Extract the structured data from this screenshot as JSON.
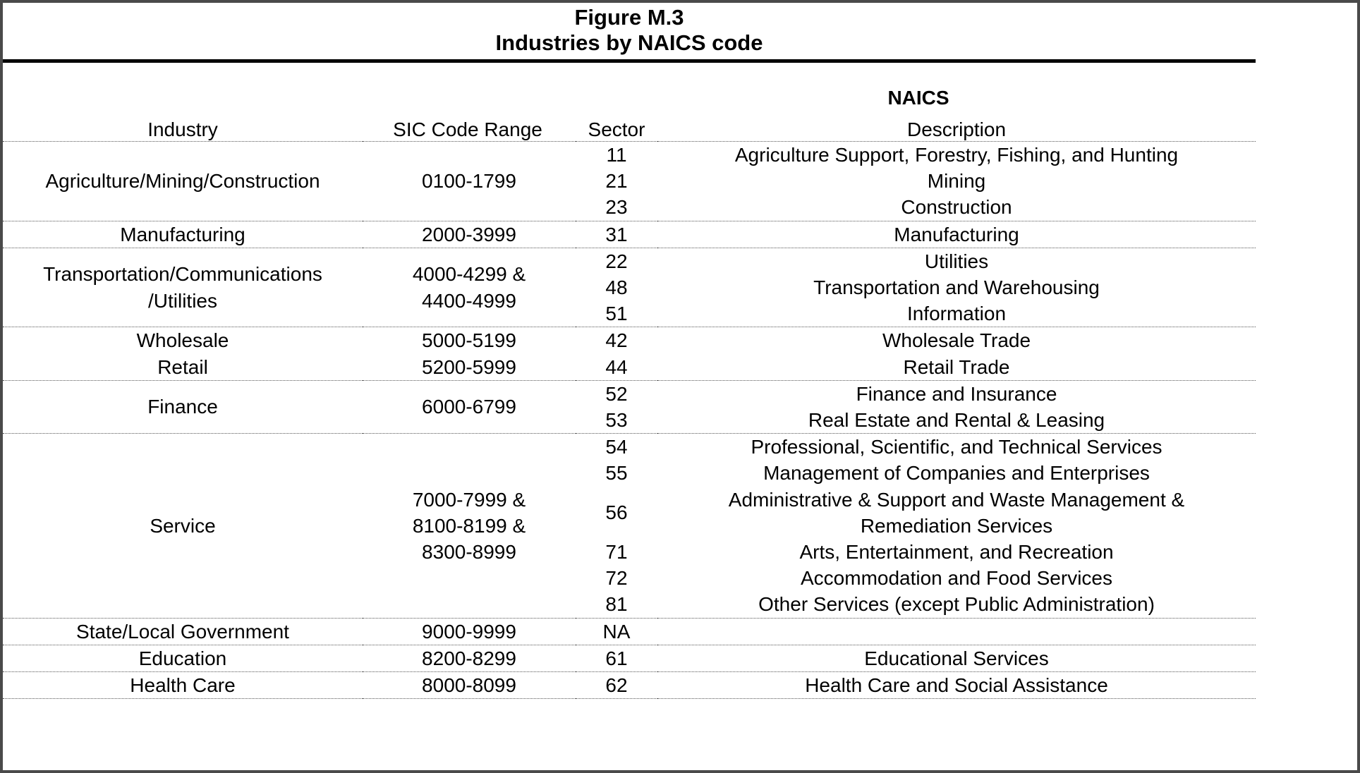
{
  "page": {
    "background": "#ffffff",
    "frame_color": "#4a4a4a",
    "thick_rule_color": "#000000",
    "dotted_line_color": "#555555",
    "text_color": "#000000"
  },
  "figure": {
    "title_line1": "Figure M.3",
    "title_line2": "Industries by NAICS code"
  },
  "table": {
    "naics_group_header": "NAICS",
    "headers": {
      "industry": "Industry",
      "sic": "SIC Code Range",
      "sector": "Sector",
      "description": "Description"
    },
    "groups": [
      {
        "industry": [
          "Agriculture/Mining/Construction"
        ],
        "sic": [
          "0100-1799"
        ],
        "rows": [
          {
            "sector": "11",
            "description": [
              "Agriculture Support, Forestry, Fishing, and Hunting"
            ]
          },
          {
            "sector": "21",
            "description": [
              "Mining"
            ]
          },
          {
            "sector": "23",
            "description": [
              "Construction"
            ]
          }
        ]
      },
      {
        "industry": [
          "Manufacturing"
        ],
        "sic": [
          "2000-3999"
        ],
        "rows": [
          {
            "sector": "31",
            "description": [
              "Manufacturing"
            ]
          }
        ]
      },
      {
        "industry": [
          "Transportation/Communications",
          "/Utilities"
        ],
        "sic": [
          "4000-4299 &",
          "4400-4999"
        ],
        "rows": [
          {
            "sector": "22",
            "description": [
              "Utilities"
            ]
          },
          {
            "sector": "48",
            "description": [
              "Transportation and Warehousing"
            ]
          },
          {
            "sector": "51",
            "description": [
              "Information"
            ]
          }
        ]
      },
      {
        "industry": [
          "Wholesale",
          "Retail"
        ],
        "sic": [
          "5000-5199",
          "5200-5999"
        ],
        "rows": [
          {
            "sector": "42",
            "description": [
              "Wholesale Trade"
            ]
          },
          {
            "sector": "44",
            "description": [
              "Retail Trade"
            ]
          }
        ]
      },
      {
        "industry": [
          "Finance"
        ],
        "sic": [
          "6000-6799"
        ],
        "rows": [
          {
            "sector": "52",
            "description": [
              "Finance and Insurance"
            ]
          },
          {
            "sector": "53",
            "description": [
              "Real Estate and Rental & Leasing"
            ]
          }
        ]
      },
      {
        "industry": [
          "Service"
        ],
        "sic": [
          "7000-7999 &",
          "8100-8199 &",
          "8300-8999"
        ],
        "rows": [
          {
            "sector": "54",
            "description": [
              "Professional, Scientific, and Technical Services"
            ]
          },
          {
            "sector": "55",
            "description": [
              "Management of Companies and Enterprises"
            ]
          },
          {
            "sector": "56",
            "description": [
              "Administrative & Support and Waste Management &",
              "Remediation Services"
            ]
          },
          {
            "sector": "71",
            "description": [
              "Arts, Entertainment, and Recreation"
            ]
          },
          {
            "sector": "72",
            "description": [
              "Accommodation and Food Services"
            ]
          },
          {
            "sector": "81",
            "description": [
              "Other Services (except Public Administration)"
            ]
          }
        ]
      },
      {
        "industry": [
          "State/Local Government"
        ],
        "sic": [
          "9000-9999"
        ],
        "rows": [
          {
            "sector": "NA",
            "description": []
          }
        ]
      },
      {
        "industry": [
          "Education"
        ],
        "sic": [
          "8200-8299"
        ],
        "rows": [
          {
            "sector": "61",
            "description": [
              "Educational Services"
            ]
          }
        ]
      },
      {
        "industry": [
          "Health Care"
        ],
        "sic": [
          "8000-8099"
        ],
        "rows": [
          {
            "sector": "62",
            "description": [
              "Health Care and Social Assistance"
            ]
          }
        ]
      }
    ]
  }
}
